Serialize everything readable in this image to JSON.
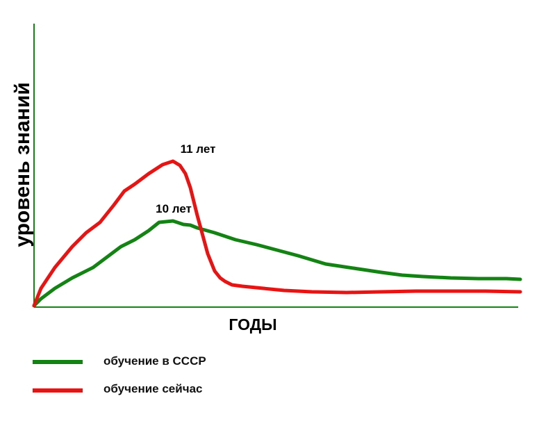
{
  "chart_data": {
    "type": "line",
    "ylabel": "уровень знаний",
    "xlabel": "годы",
    "grid": false,
    "xlim": [
      0,
      700
    ],
    "ylim": [
      0,
      400
    ],
    "series": [
      {
        "name": "обучение в СССР",
        "color": "#138413",
        "x": [
          0,
          10,
          30,
          55,
          85,
          105,
          125,
          145,
          165,
          180,
          200,
          215,
          225,
          235,
          260,
          290,
          320,
          350,
          380,
          420,
          460,
          500,
          530,
          560,
          600,
          640,
          680,
          700
        ],
        "y": [
          0,
          10,
          25,
          40,
          55,
          70,
          85,
          95,
          108,
          120,
          122,
          117,
          116,
          112,
          105,
          95,
          88,
          80,
          72,
          60,
          54,
          48,
          44,
          42,
          40,
          39,
          39,
          38
        ]
      },
      {
        "name": "обучение сейчас",
        "color": "#e81313",
        "x": [
          0,
          10,
          30,
          55,
          75,
          95,
          115,
          130,
          145,
          165,
          185,
          200,
          210,
          218,
          225,
          235,
          250,
          260,
          268,
          275,
          285,
          300,
          330,
          360,
          400,
          450,
          500,
          550,
          600,
          650,
          700
        ],
        "y": [
          0,
          25,
          55,
          85,
          105,
          120,
          145,
          165,
          175,
          190,
          203,
          208,
          202,
          190,
          170,
          130,
          75,
          50,
          40,
          35,
          30,
          28,
          25,
          22,
          20,
          19,
          20,
          21,
          21,
          21,
          20
        ]
      }
    ],
    "annotations": [
      {
        "text": "11 лет",
        "series": 1,
        "x": 210,
        "y": 208
      },
      {
        "text": "10 лет",
        "series": 0,
        "x": 175,
        "y": 122
      }
    ]
  },
  "legend": {
    "items": [
      {
        "label": "обучение в СССР",
        "color": "#138413"
      },
      {
        "label": "обучение сейчас",
        "color": "#e81313"
      }
    ]
  }
}
